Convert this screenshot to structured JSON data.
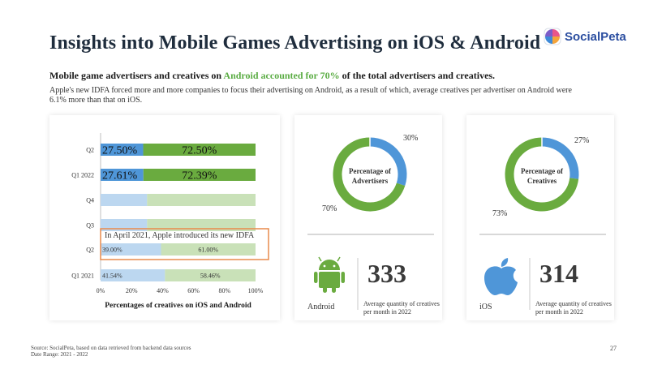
{
  "title": "Insights into Mobile Games Advertising on iOS & Android",
  "logo": {
    "text": "SocialPeta"
  },
  "subtitle": {
    "prefix": "Mobile game advertisers and creatives on ",
    "highlight": "Android accounted for 70%",
    "suffix": " of the total advertisers and creatives."
  },
  "description": "Apple's new IDFA forced more and more companies to focus their advertising on Android, as a result of which, average creatives per advertiser on Android were 6.1% more than that on iOS.",
  "annotation": "In April 2021, Apple introduced its new IDFA",
  "colors": {
    "ios": "#4f96d8",
    "android": "#6aab3f",
    "ios_light": "#bcd7f0",
    "android_light": "#c9e1b8",
    "highlight_box": "#e98a4c"
  },
  "chart_data": [
    {
      "type": "bar",
      "orientation": "horizontal-stacked-percent",
      "categories": [
        "Q2",
        "Q1 2022",
        "Q4",
        "Q3",
        "Q2",
        "Q1 2021"
      ],
      "series": [
        {
          "values": [
            27.5,
            27.61,
            30,
            30,
            39,
            41.54
          ],
          "labels": [
            "27.50%",
            "27.61%",
            "",
            "",
            "39.00%",
            "41.54%"
          ]
        },
        {
          "values": [
            72.5,
            72.39,
            70,
            70,
            61,
            58.46
          ],
          "labels": [
            "72.50%",
            "72.39%",
            "",
            "",
            "61.00%",
            "58.46%"
          ]
        }
      ],
      "xticks": [
        "0%",
        "20%",
        "40%",
        "60%",
        "80%",
        "100%"
      ],
      "xlim": [
        0,
        100
      ],
      "xlabel": "Percentages of creatives on iOS and Android"
    },
    {
      "type": "pie",
      "style": "donut",
      "center_label": [
        "Percentage of",
        "Advertisers"
      ],
      "values": [
        30,
        70
      ],
      "labels": [
        "30%",
        "70%"
      ]
    },
    {
      "type": "pie",
      "style": "donut",
      "center_label": [
        "Percentage of",
        "Creatives"
      ],
      "values": [
        27,
        73
      ],
      "labels": [
        "27%",
        "73%"
      ]
    }
  ],
  "stats": {
    "android": {
      "platform": "Android",
      "value": "333",
      "desc": [
        "Average quantity of creatives",
        "per month in 2022"
      ],
      "icon": "android-icon"
    },
    "ios": {
      "platform": "iOS",
      "value": "314",
      "desc": [
        "Average quantity of creatives",
        "per month in 2022"
      ],
      "icon": "apple-icon"
    }
  },
  "footer": {
    "source": "Source: SocialPeta, based on data retrieved from backend data sources",
    "range": "Date Range: 2021 - 2022"
  },
  "page_number": "27"
}
